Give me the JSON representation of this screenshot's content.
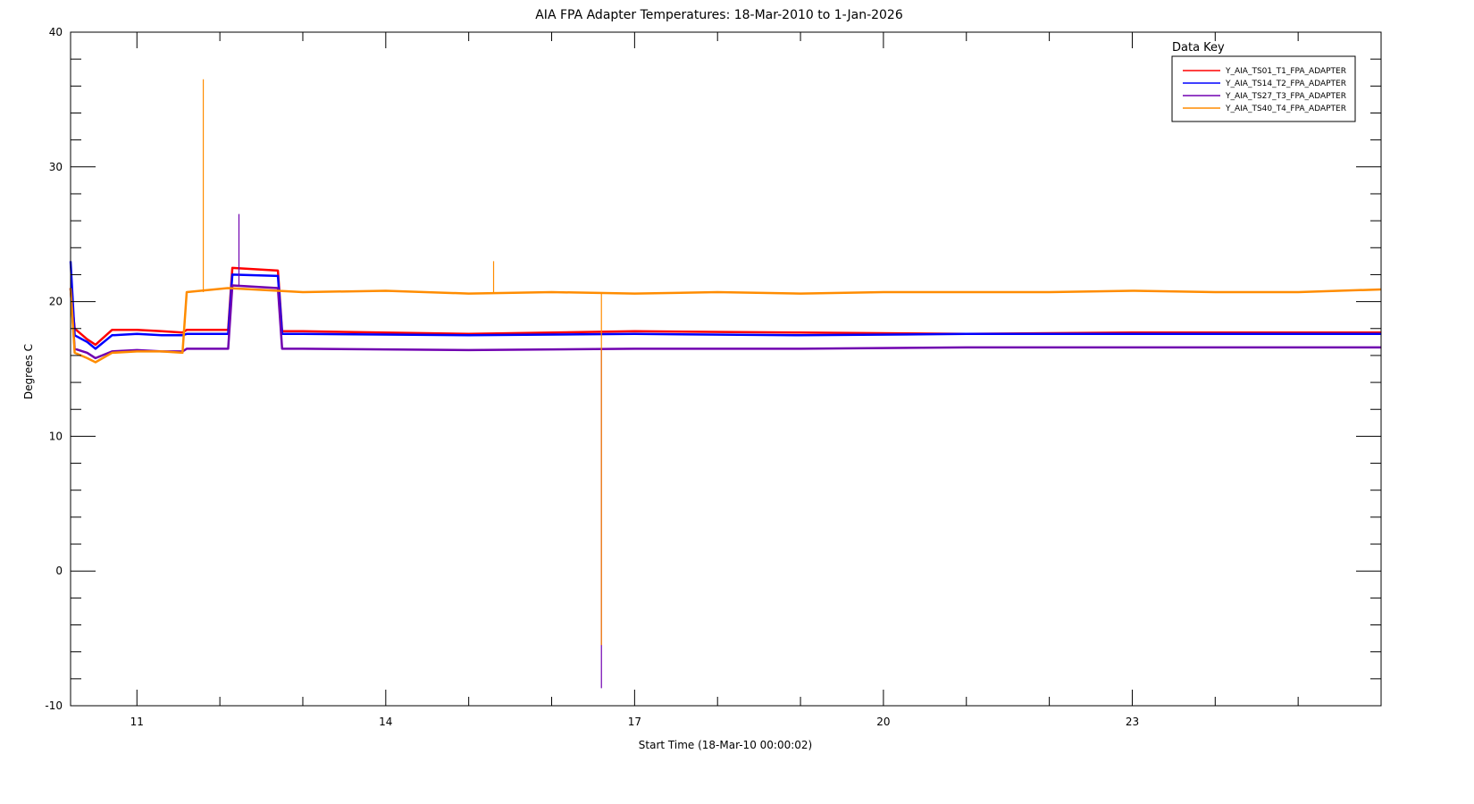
{
  "chart_data": {
    "type": "line",
    "title": "AIA FPA Adapter Temperatures: 18-Mar-2010 to 1-Jan-2026",
    "xlabel": "Start Time (18-Mar-10 00:00:02)",
    "ylabel": "Degrees C",
    "xlim": [
      2010.2,
      2026.0
    ],
    "ylim": [
      -10,
      40
    ],
    "x_ticks": [
      2011,
      2014,
      2017,
      2020,
      2023
    ],
    "x_tick_labels": [
      "11",
      "14",
      "17",
      "20",
      "23"
    ],
    "y_ticks": [
      -10,
      0,
      10,
      20,
      30,
      40
    ],
    "y_tick_labels": [
      "-10",
      "0",
      "10",
      "20",
      "30",
      "40"
    ],
    "grid": false,
    "legend": {
      "title": "Data Key",
      "placement": "top-right"
    },
    "series": [
      {
        "name": "Y_AIA_TS01_T1_FPA_ADAPTER",
        "color": "#ff0000",
        "x": [
          2010.2,
          2010.25,
          2010.4,
          2010.5,
          2010.7,
          2011.0,
          2011.3,
          2011.55,
          2011.6,
          2012.1,
          2012.15,
          2012.7,
          2012.75,
          2013.0,
          2015.0,
          2017.0,
          2019.0,
          2021.0,
          2023.0,
          2026.0
        ],
        "y": [
          21.0,
          18.0,
          17.2,
          16.8,
          17.9,
          17.9,
          17.8,
          17.7,
          17.9,
          17.9,
          22.5,
          22.3,
          17.8,
          17.8,
          17.6,
          17.8,
          17.7,
          17.6,
          17.7,
          17.7
        ]
      },
      {
        "name": "Y_AIA_TS14_T2_FPA_ADAPTER",
        "color": "#0000ff",
        "x": [
          2010.2,
          2010.25,
          2010.4,
          2010.5,
          2010.7,
          2011.0,
          2011.3,
          2011.55,
          2011.6,
          2012.1,
          2012.15,
          2012.7,
          2012.75,
          2013.0,
          2015.0,
          2017.0,
          2019.0,
          2021.0,
          2023.0,
          2026.0
        ],
        "y": [
          23.0,
          17.5,
          17.0,
          16.5,
          17.5,
          17.6,
          17.5,
          17.5,
          17.6,
          17.6,
          22.0,
          21.9,
          17.6,
          17.6,
          17.5,
          17.6,
          17.5,
          17.6,
          17.6,
          17.6
        ]
      },
      {
        "name": "Y_AIA_TS27_T3_FPA_ADAPTER",
        "color": "#7000b0",
        "x": [
          2010.2,
          2010.25,
          2010.4,
          2010.5,
          2010.7,
          2011.0,
          2011.3,
          2011.55,
          2011.6,
          2012.1,
          2012.15,
          2012.7,
          2012.75,
          2013.0,
          2015.0,
          2017.0,
          2019.0,
          2021.0,
          2023.0,
          2026.0
        ],
        "y": [
          21.0,
          16.5,
          16.2,
          15.8,
          16.3,
          16.4,
          16.3,
          16.3,
          16.5,
          16.5,
          21.2,
          21.0,
          16.5,
          16.5,
          16.4,
          16.5,
          16.5,
          16.6,
          16.6,
          16.6
        ]
      },
      {
        "name": "Y_AIA_TS40_T4_FPA_ADAPTER",
        "color": "#ff8c00",
        "x": [
          2010.2,
          2010.25,
          2010.4,
          2010.5,
          2010.7,
          2011.0,
          2011.3,
          2011.55,
          2011.6,
          2012.1,
          2012.7,
          2013.0,
          2014.0,
          2015.0,
          2016.0,
          2017.0,
          2018.0,
          2019.0,
          2020.0,
          2021.0,
          2022.0,
          2023.0,
          2024.0,
          2025.0,
          2026.0
        ],
        "y": [
          21.0,
          16.2,
          15.8,
          15.5,
          16.2,
          16.3,
          16.3,
          16.2,
          20.7,
          21.0,
          20.8,
          20.7,
          20.8,
          20.6,
          20.7,
          20.6,
          20.7,
          20.6,
          20.7,
          20.7,
          20.7,
          20.8,
          20.7,
          20.7,
          20.9
        ]
      }
    ],
    "annotations": [
      {
        "type": "spike",
        "series": "Y_AIA_TS40_T4_FPA_ADAPTER",
        "x": 2011.8,
        "y": 36.5
      },
      {
        "type": "spike",
        "series": "Y_AIA_TS27_T3_FPA_ADAPTER",
        "x": 2012.23,
        "y": 26.5
      },
      {
        "type": "spike",
        "series": "Y_AIA_TS40_T4_FPA_ADAPTER",
        "x": 2015.3,
        "y": 23.0
      },
      {
        "type": "dip",
        "series": "Y_AIA_TS27_T3_FPA_ADAPTER",
        "x": 2016.6,
        "y": -8.7
      },
      {
        "type": "dip",
        "series": "Y_AIA_TS40_T4_FPA_ADAPTER",
        "x": 2016.6,
        "y": -5.5
      }
    ]
  }
}
